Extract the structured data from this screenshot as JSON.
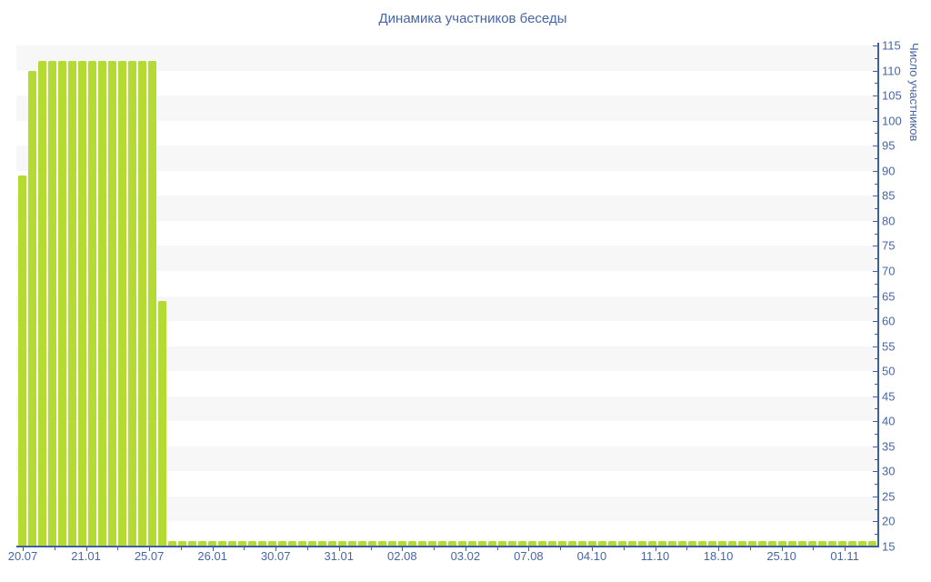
{
  "page": {
    "background": "#ffffff"
  },
  "chart_data": {
    "type": "bar",
    "title": "Динамика участников беседы",
    "ylabel": "Число участников",
    "xlabel": "",
    "ylim": [
      15,
      115
    ],
    "y_tick_step": 5,
    "y_tick_labels": [
      "15",
      "20",
      "25",
      "30",
      "35",
      "40",
      "45",
      "50",
      "55",
      "60",
      "65",
      "70",
      "75",
      "80",
      "85",
      "90",
      "95",
      "100",
      "105",
      "110",
      "115"
    ],
    "x_tick_labels": [
      "20.07",
      "21.01",
      "25.07",
      "26.01",
      "30.07",
      "31.01",
      "02.08",
      "03.02",
      "07.08",
      "04.10",
      "11.10",
      "18.10",
      "25.10",
      "01.11"
    ],
    "legend_position": "none",
    "grid": "horizontal-striped-bands",
    "bar_color": "#b4db31",
    "axis_color": "#3f5fa0",
    "label_color": "#4766a6",
    "stripe_color": "#f7f7f8",
    "values": [
      89,
      110,
      112,
      112,
      112,
      112,
      112,
      112,
      112,
      112,
      112,
      112,
      112,
      112,
      64,
      16,
      16,
      16,
      16,
      16,
      16,
      16,
      16,
      16,
      16,
      16,
      16,
      16,
      16,
      16,
      16,
      16,
      16,
      16,
      16,
      16,
      16,
      16,
      16,
      16,
      16,
      16,
      16,
      16,
      16,
      16,
      16,
      16,
      16,
      16,
      16,
      16,
      16,
      16,
      16,
      16,
      16,
      16,
      16,
      16,
      16,
      16,
      16,
      16,
      16,
      16,
      16,
      16,
      16,
      16,
      16,
      16,
      16,
      16,
      16,
      16,
      16,
      16,
      16,
      16,
      16,
      16,
      16,
      16,
      16,
      16
    ]
  }
}
